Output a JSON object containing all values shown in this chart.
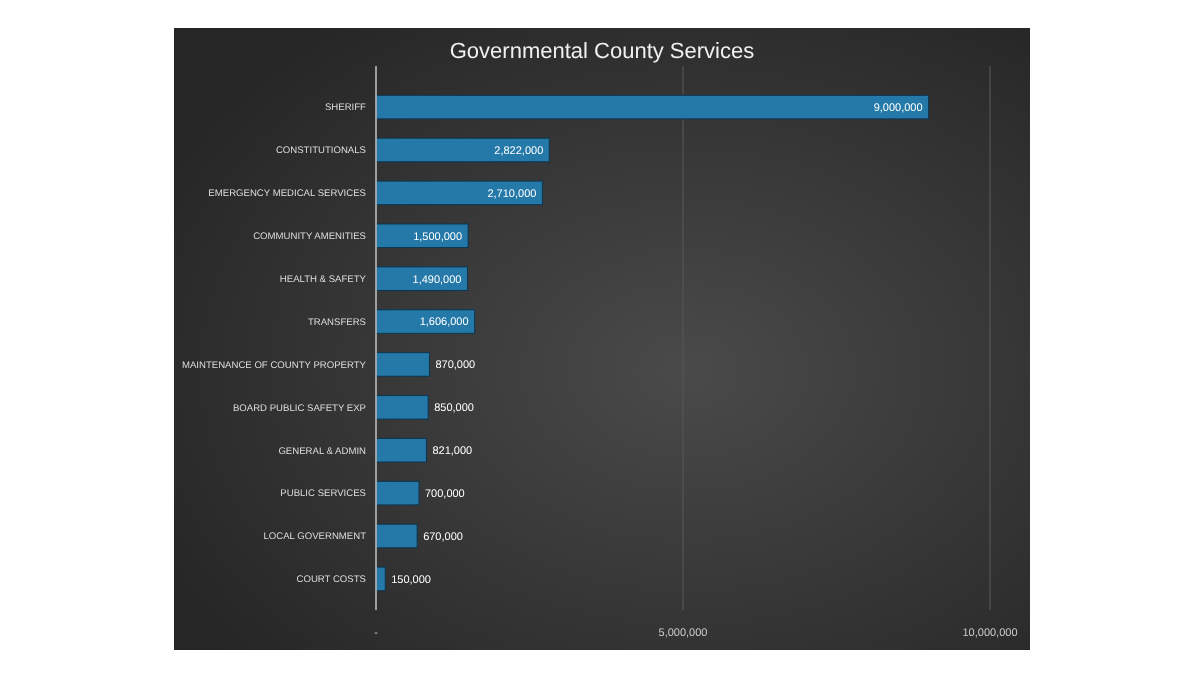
{
  "chart_data": {
    "type": "bar",
    "orientation": "horizontal",
    "title": "Governmental County Services",
    "categories": [
      "SHERIFF",
      "CONSTITUTIONALS",
      "EMERGENCY MEDICAL SERVICES",
      "COMMUNITY AMENITIES",
      "HEALTH & SAFETY",
      "TRANSFERS",
      "MAINTENANCE OF COUNTY PROPERTY",
      "BOARD PUBLIC SAFETY EXP",
      "GENERAL & ADMIN",
      "PUBLIC SERVICES",
      "LOCAL GOVERNMENT",
      "COURT COSTS"
    ],
    "values": [
      9000000,
      2822000,
      2710000,
      1500000,
      1490000,
      1606000,
      870000,
      850000,
      821000,
      700000,
      670000,
      150000
    ],
    "color": "#2479a8",
    "xlim": [
      0,
      10000000
    ],
    "xticks": [
      {
        "value": 0,
        "label": "-"
      },
      {
        "value": 5000000,
        "label": "5,000,000"
      },
      {
        "value": 10000000,
        "label": "10,000,000"
      }
    ],
    "value_labels": [
      "9,000,000",
      "2,822,000",
      "2,710,000",
      "1,500,000",
      "1,490,000",
      "1,606,000",
      "870,000",
      "850,000",
      "821,000",
      "700,000",
      "670,000",
      "150,000"
    ],
    "grid": "x"
  }
}
